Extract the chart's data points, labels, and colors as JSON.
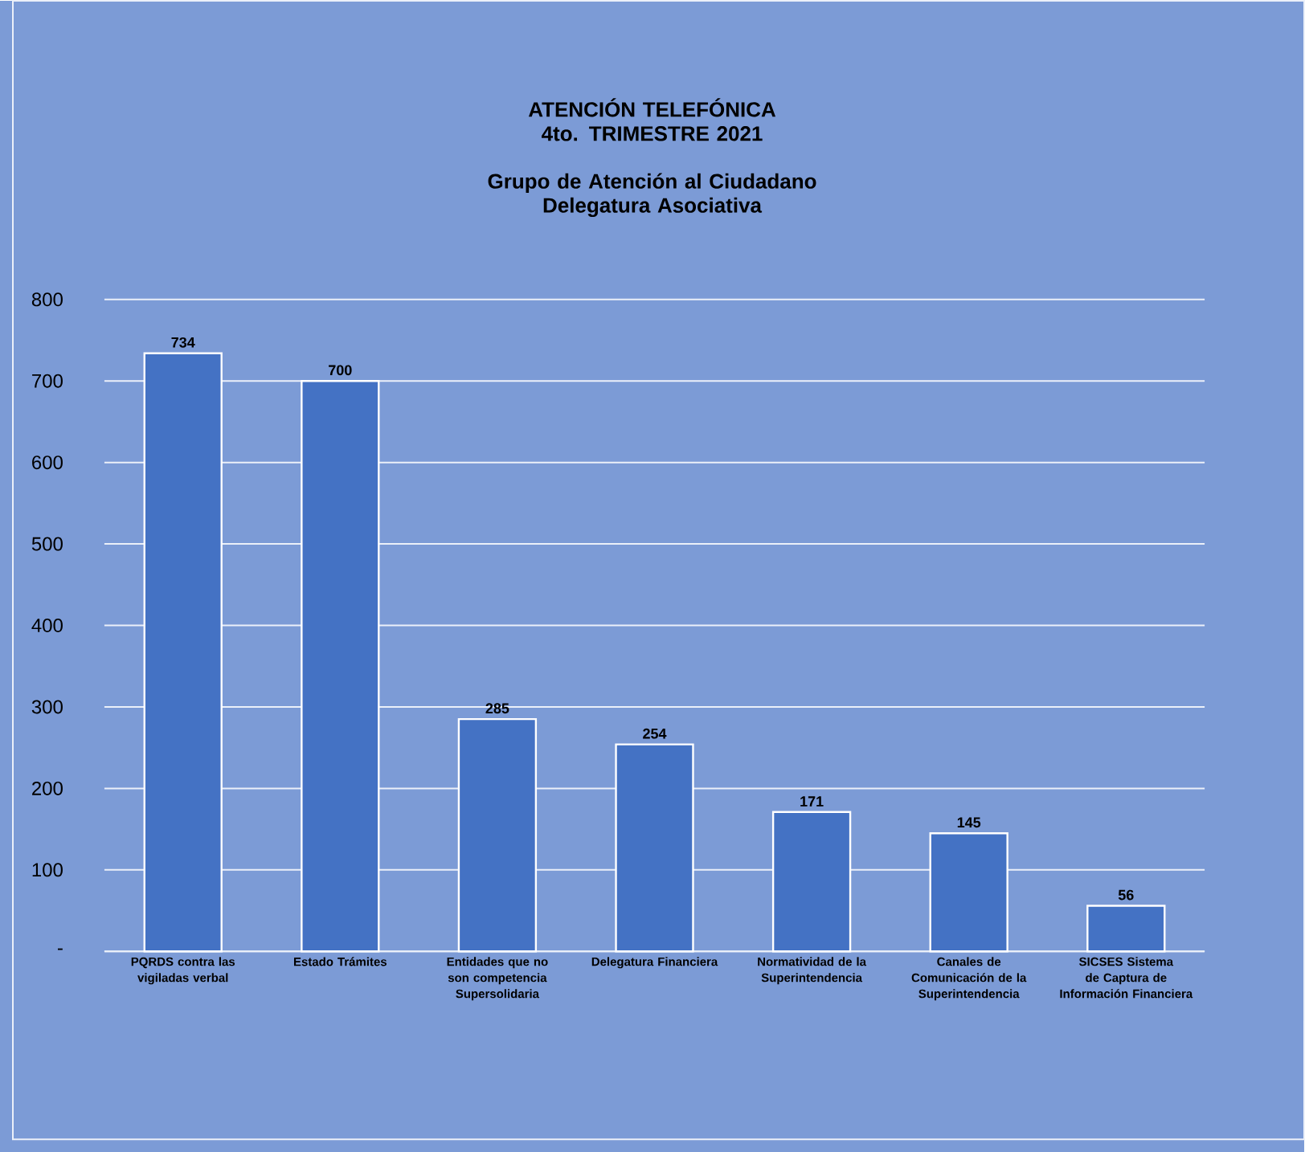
{
  "chart_data": {
    "type": "bar",
    "title": "ATENCIÓN TELEFÓNICA 4to. TRIMESTRE 2021",
    "subtitle": "Grupo de Atención al Ciudadano Delegatura Asociativa",
    "categories": [
      "PQRDS contra las vigiladas verbal",
      "Estado Trámites",
      "Entidades que no son competencia Supersolidaria",
      "Delegatura Financiera",
      "Normatividad de la Superintendencia",
      "Canales de Comunicación de la Superintendencia",
      "SICSES Sistema de Captura de Información Financiera"
    ],
    "values": [
      734,
      700,
      285,
      254,
      171,
      145,
      56
    ],
    "color": "#4472c4",
    "ylim": [
      0,
      800
    ],
    "yticks": [
      {
        "value": 0,
        "label": "-"
      },
      100,
      200,
      300,
      400,
      500,
      600,
      700,
      800
    ],
    "grid": "y",
    "data_labels": true
  }
}
